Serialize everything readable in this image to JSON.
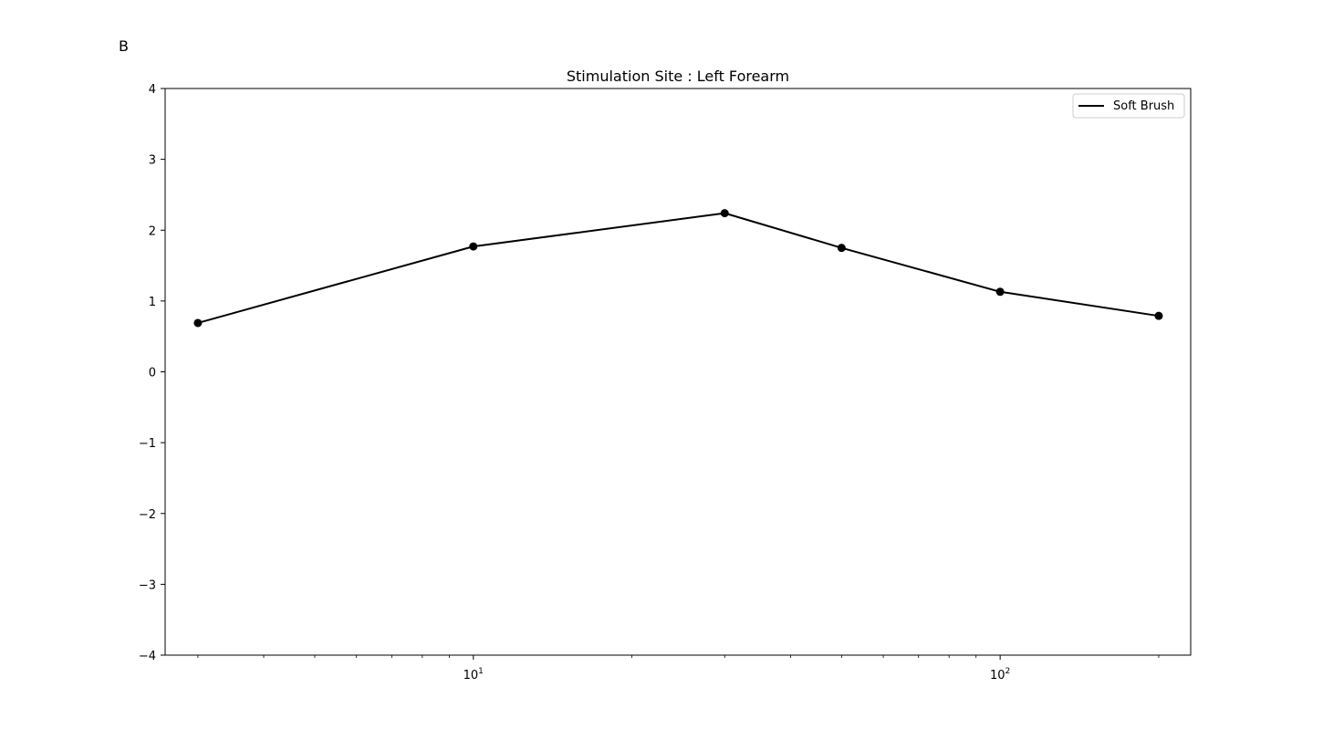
{
  "panel_label": "B",
  "chart_data": {
    "type": "line",
    "title": "Stimulation Site : Left Forearm",
    "xlabel": "",
    "ylabel": "",
    "xscale": "log",
    "xlim": [
      2.6,
      230
    ],
    "ylim": [
      -4,
      4
    ],
    "x_ticks": [
      {
        "value": 10,
        "base": "10",
        "exp": "1"
      },
      {
        "value": 100,
        "base": "10",
        "exp": "2"
      }
    ],
    "y_ticks": [
      {
        "value": 4,
        "label": "4"
      },
      {
        "value": 3,
        "label": "3"
      },
      {
        "value": 2,
        "label": "2"
      },
      {
        "value": 1,
        "label": "1"
      },
      {
        "value": 0,
        "label": "0"
      },
      {
        "value": -1,
        "label": "−1"
      },
      {
        "value": -2,
        "label": "−2"
      },
      {
        "value": -3,
        "label": "−3"
      },
      {
        "value": -4,
        "label": "−4"
      }
    ],
    "grid": false,
    "legend_position": "top-right",
    "series": [
      {
        "name": "Soft Brush",
        "color": "#000000",
        "marker": "circle",
        "x": [
          3,
          10,
          30,
          50,
          100,
          200
        ],
        "y": [
          0.69,
          1.77,
          2.24,
          1.75,
          1.13,
          0.79
        ]
      }
    ]
  }
}
